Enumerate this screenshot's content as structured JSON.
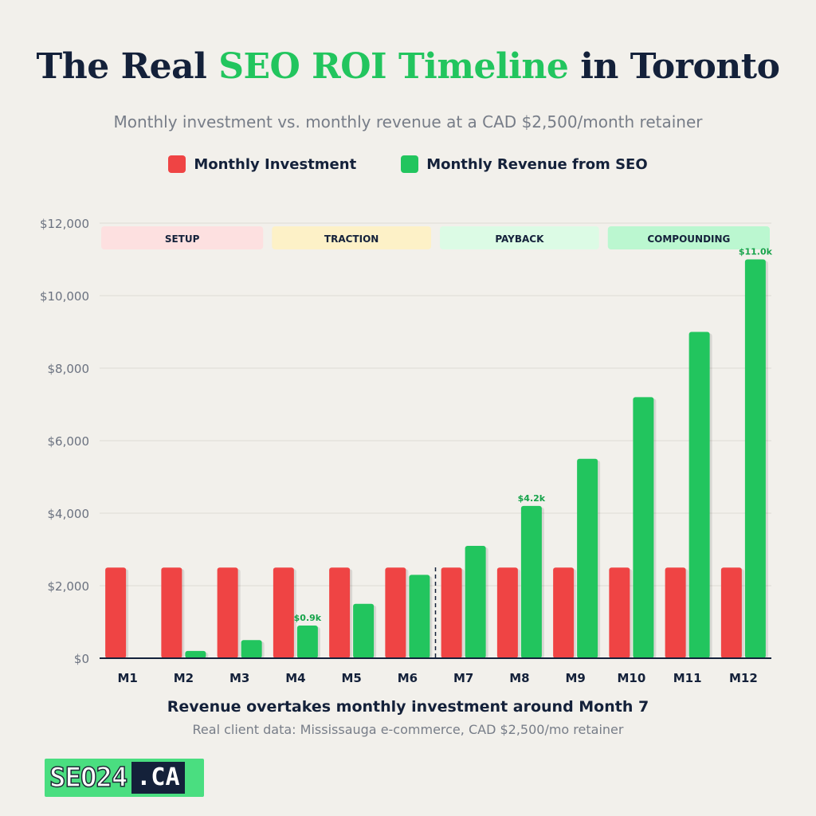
{
  "header": {
    "title_pre": "The Real ",
    "title_accent": "SEO ROI Timeline",
    "title_post": " in Toronto",
    "subtitle": "Monthly investment vs. monthly revenue at a CAD $2,500/month retainer"
  },
  "legend": [
    {
      "label": "Monthly Investment",
      "color": "#ef4444"
    },
    {
      "label": "Monthly Revenue from SEO",
      "color": "#22c55e"
    }
  ],
  "phases": [
    {
      "label": "SETUP",
      "start": 0,
      "end": 2.95,
      "color": "#fde0e0"
    },
    {
      "label": "TRACTION",
      "start": 3.05,
      "end": 5.95,
      "color": "#fdf1c7"
    },
    {
      "label": "PAYBACK",
      "start": 6.05,
      "end": 8.95,
      "color": "#dcfbe5"
    },
    {
      "label": "COMPOUNDING",
      "start": 9.05,
      "end": 12,
      "color": "#bbf7d0"
    }
  ],
  "chart_data": {
    "type": "bar",
    "categories": [
      "M1",
      "M2",
      "M3",
      "M4",
      "M5",
      "M6",
      "M7",
      "M8",
      "M9",
      "M10",
      "M11",
      "M12"
    ],
    "series": [
      {
        "name": "Monthly Investment",
        "color": "#ef4444",
        "values": [
          2500,
          2500,
          2500,
          2500,
          2500,
          2500,
          2500,
          2500,
          2500,
          2500,
          2500,
          2500
        ]
      },
      {
        "name": "Monthly Revenue from SEO",
        "color": "#22c55e",
        "values": [
          0,
          200,
          500,
          900,
          1500,
          2300,
          3100,
          4200,
          5500,
          7200,
          9000,
          11000
        ]
      }
    ],
    "ylim": [
      0,
      12000
    ],
    "yticks": [
      0,
      2000,
      4000,
      6000,
      8000,
      10000,
      12000
    ],
    "ytick_labels": [
      "$0",
      "$2,000",
      "$4,000",
      "$6,000",
      "$8,000",
      "$10,000",
      "$12,000"
    ],
    "data_labels": [
      {
        "index": 3,
        "series": 1,
        "text": "$0.9k"
      },
      {
        "index": 7,
        "series": 1,
        "text": "$4.2k"
      },
      {
        "index": 11,
        "series": 1,
        "text": "$11.0k"
      }
    ],
    "breakeven_after_index": 5,
    "grid": true
  },
  "footer": {
    "caption": "Revenue overtakes monthly investment around Month 7",
    "source": "Real client data: Mississauga e-commerce, CAD $2,500/mo retainer"
  },
  "logo": {
    "main": "SEO24",
    "tld": ".CA"
  }
}
